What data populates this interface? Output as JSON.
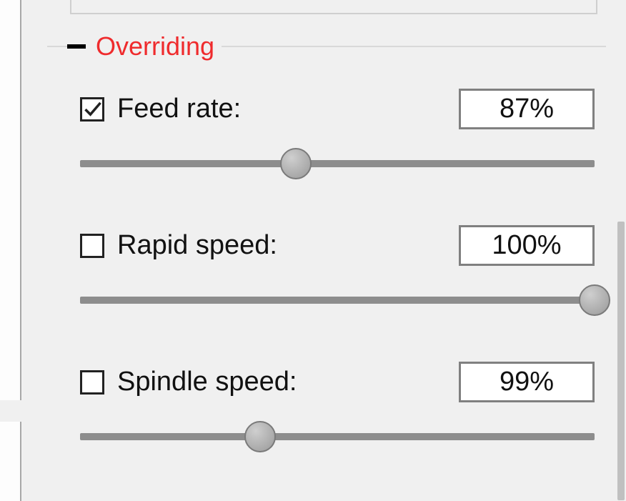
{
  "panel": {
    "title": "Overriding",
    "title_color": "#ef2b2d",
    "collapsed": false,
    "controls": [
      {
        "id": "feed-rate",
        "label": "Feed rate:",
        "checked": true,
        "value_display": "87%",
        "slider_percent": 42
      },
      {
        "id": "rapid-speed",
        "label": "Rapid speed:",
        "checked": false,
        "value_display": "100%",
        "slider_percent": 100
      },
      {
        "id": "spindle-speed",
        "label": "Spindle speed:",
        "checked": false,
        "value_display": "99%",
        "slider_percent": 35
      }
    ]
  },
  "style": {
    "background": "#f0f0f0",
    "track_color": "#8d8d8d",
    "thumb_color": "#b0b0b0",
    "border_color": "#808080",
    "label_fontsize": 38,
    "title_fontsize": 36
  }
}
